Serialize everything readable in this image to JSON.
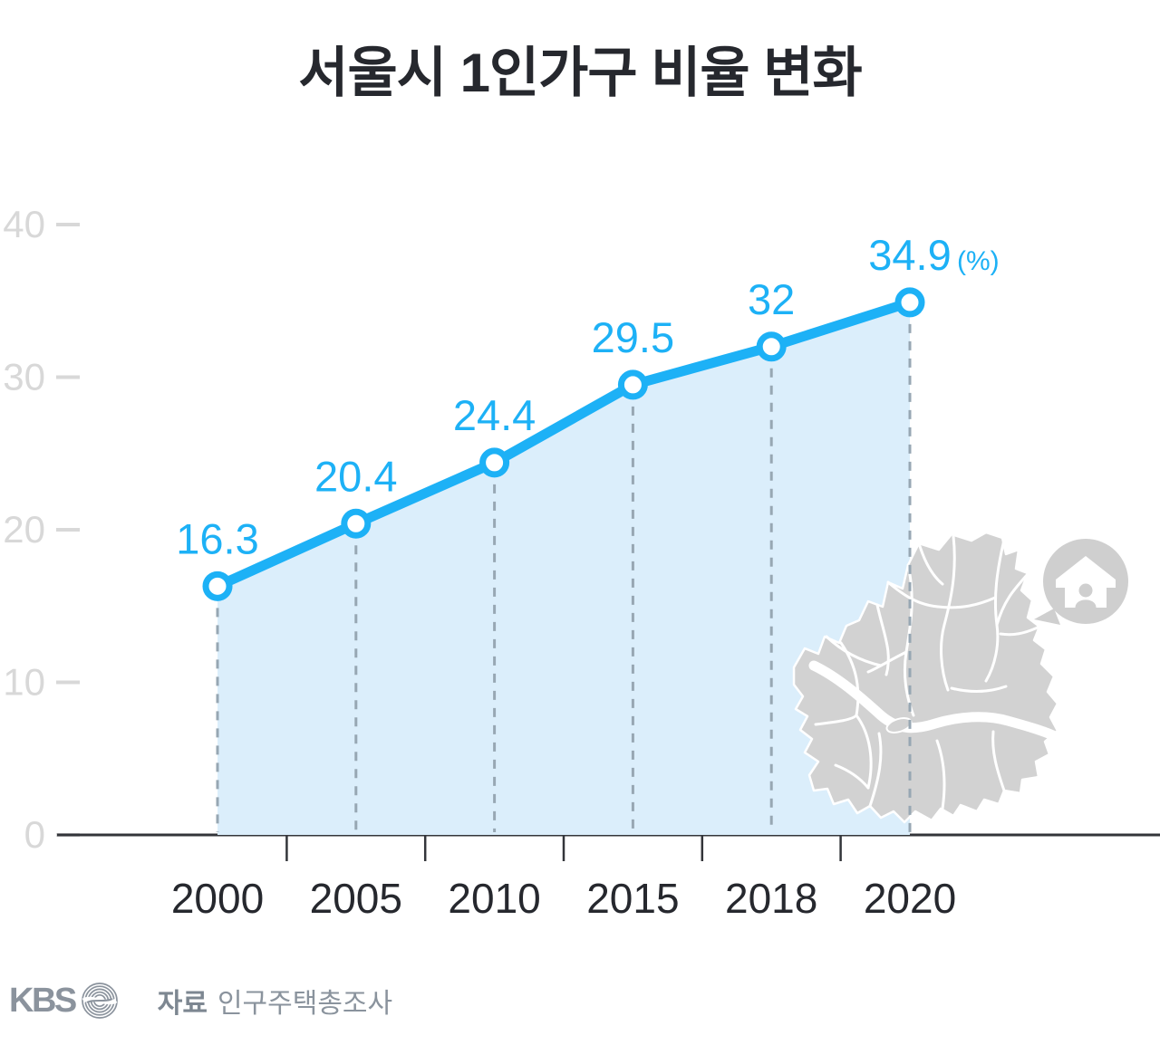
{
  "title": "서울시 1인가구 비율 변화",
  "colors": {
    "line": "#1db1f6",
    "area": "#dbeefb",
    "dashed": "#97a7b3",
    "axis": "#33353a",
    "x_label": "#26282e",
    "y_label": "#d8d8d8",
    "map": "#d2d2d2",
    "footer": "#8b939d"
  },
  "chart_data": {
    "type": "line",
    "title": "서울시 1인가구 비율 변화",
    "categories": [
      "2000",
      "2005",
      "2010",
      "2015",
      "2018",
      "2020"
    ],
    "values": [
      16.3,
      20.4,
      24.4,
      29.5,
      32,
      34.9
    ],
    "labels": [
      "16.3",
      "20.4",
      "24.4",
      "29.5",
      "32",
      "34.9"
    ],
    "unit": "(%)",
    "yticks": [
      0,
      10,
      20,
      30,
      40
    ],
    "ylim": [
      0,
      42
    ],
    "area_fill": true,
    "markers": "circle",
    "grid": "dashed-vertical-at-points",
    "legend": "none"
  },
  "footer": {
    "logo": "KBS",
    "source_label": "자료",
    "source_value": "인구주택총조사"
  }
}
